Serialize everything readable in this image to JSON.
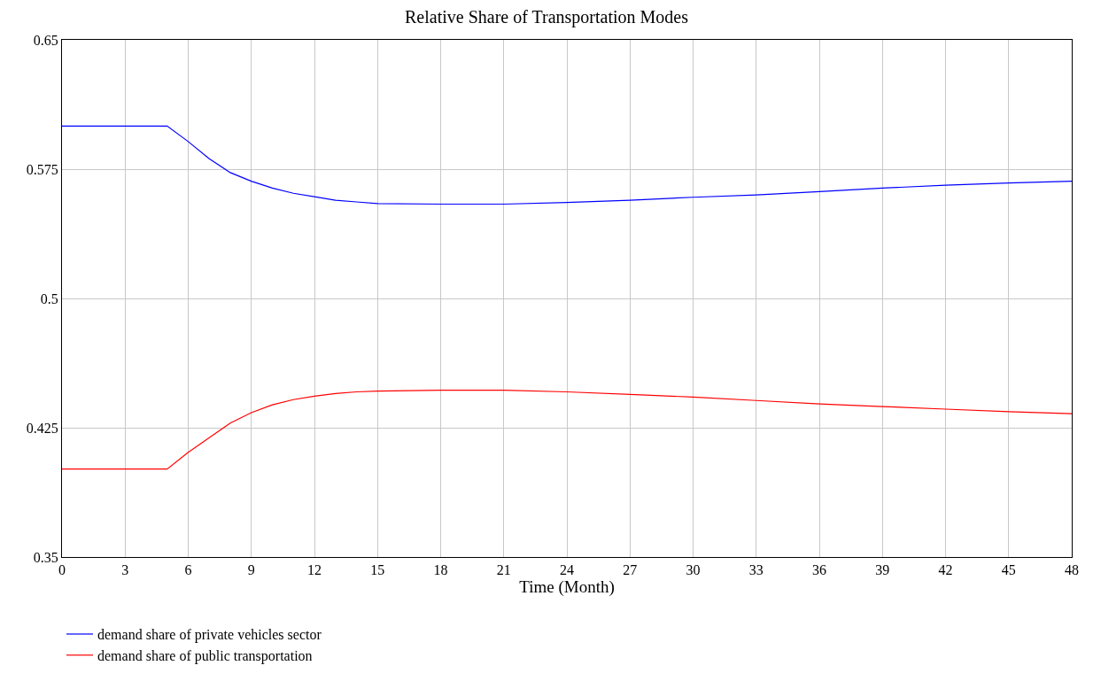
{
  "chart_data": {
    "type": "line",
    "title": "Relative Share of Transportation Modes",
    "xlabel": "Time (Month)",
    "x": [
      0,
      5,
      6,
      7,
      8,
      9,
      10,
      11,
      12,
      13,
      14,
      15,
      18,
      21,
      24,
      27,
      30,
      33,
      36,
      39,
      42,
      45,
      48
    ],
    "series": [
      {
        "name": "demand share of private vehicles sector",
        "color": "#0000ff",
        "values": [
          0.6,
          0.6,
          0.591,
          0.581,
          0.573,
          0.568,
          0.564,
          0.561,
          0.559,
          0.557,
          0.556,
          0.555,
          0.5547,
          0.5547,
          0.5557,
          0.557,
          0.5587,
          0.56,
          0.562,
          0.564,
          0.5657,
          0.567,
          0.568
        ]
      },
      {
        "name": "demand share of public transportation",
        "color": "#ff0000",
        "values": [
          0.401,
          0.401,
          0.4107,
          0.4192,
          0.4277,
          0.4337,
          0.4383,
          0.4413,
          0.4433,
          0.4448,
          0.4458,
          0.4463,
          0.4468,
          0.4468,
          0.4458,
          0.4443,
          0.4428,
          0.4408,
          0.4388,
          0.4373,
          0.4358,
          0.4343,
          0.4332
        ]
      }
    ],
    "xlim": [
      0,
      48
    ],
    "xticks": [
      0,
      3,
      6,
      9,
      12,
      15,
      18,
      21,
      24,
      27,
      30,
      33,
      36,
      39,
      42,
      45,
      48
    ],
    "ylim": [
      0.35,
      0.65
    ],
    "yticks": [
      0.35,
      0.425,
      0.5,
      0.575,
      0.65
    ],
    "grid": true,
    "legend": "bottom"
  }
}
